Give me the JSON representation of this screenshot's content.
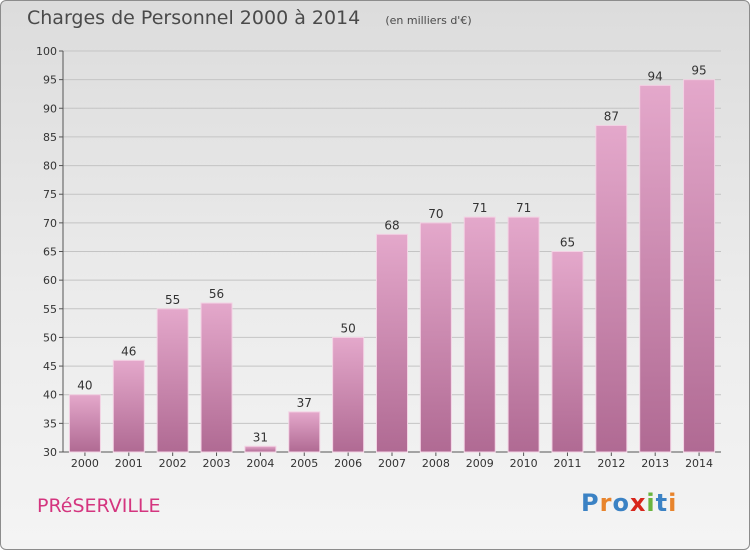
{
  "header": {
    "title": "Charges de Personnel 2000 à 2014",
    "unit": "(en milliers d'€)"
  },
  "footer": {
    "commune": "PRéSERVILLE",
    "logo": "Proxiti"
  },
  "colors": {
    "bar_top": "#e4a8cb",
    "bar_bottom": "#b06a93",
    "commune_text": "#d4357f",
    "logo_letters": [
      "#3b82c4",
      "#e8842c",
      "#3b82c4",
      "#d8261c",
      "#6ab43e",
      "#3b82c4",
      "#e8842c"
    ]
  },
  "chart_data": {
    "type": "bar",
    "categories": [
      "2000",
      "2001",
      "2002",
      "2003",
      "2004",
      "2005",
      "2006",
      "2007",
      "2008",
      "2009",
      "2010",
      "2011",
      "2012",
      "2013",
      "2014"
    ],
    "values": [
      40,
      46,
      55,
      56,
      31,
      37,
      50,
      68,
      70,
      71,
      71,
      65,
      87,
      94,
      95
    ],
    "ylim": [
      30,
      100
    ],
    "yticks": [
      30,
      35,
      40,
      45,
      50,
      55,
      60,
      65,
      70,
      75,
      80,
      85,
      90,
      95,
      100
    ],
    "grid": true
  }
}
